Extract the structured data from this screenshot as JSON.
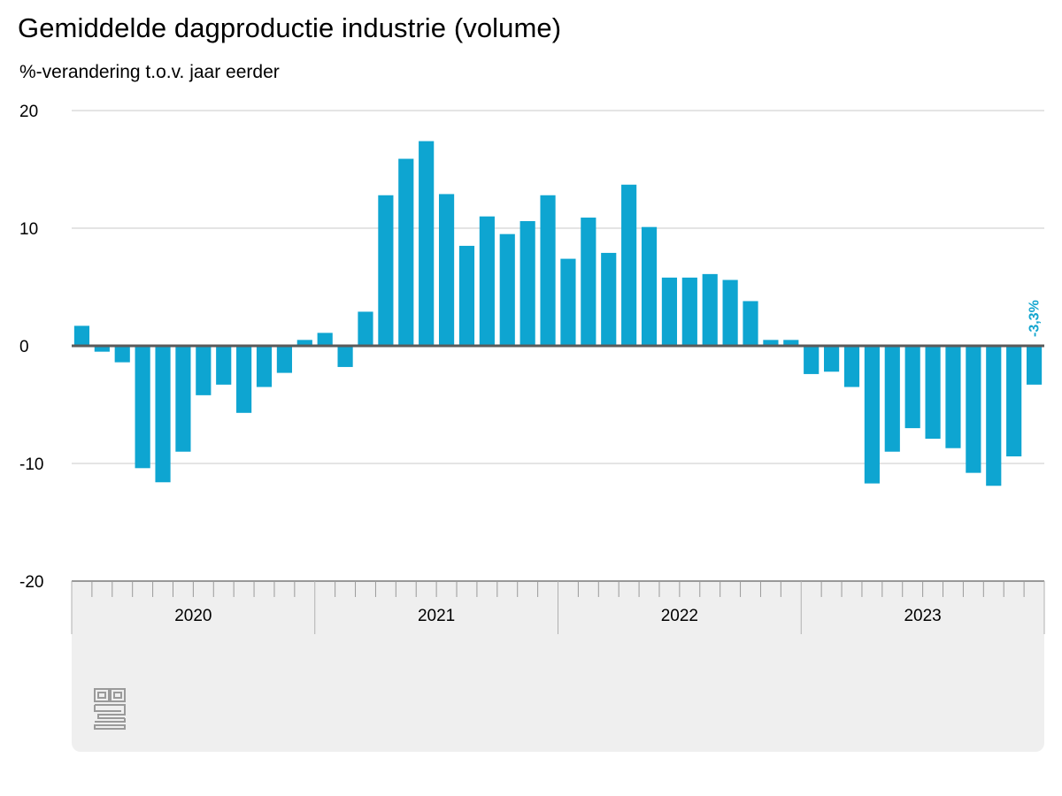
{
  "chart_data": {
    "type": "bar",
    "title": "Gemiddelde dagproductie industrie (volume)",
    "subtitle": "%-verandering t.o.v. jaar eerder",
    "ylim": [
      -20,
      20
    ],
    "yticks": [
      20,
      10,
      0,
      -10,
      -20
    ],
    "grid": true,
    "years": [
      "2020",
      "2021",
      "2022",
      "2023"
    ],
    "categories": [
      "2020-01",
      "2020-02",
      "2020-03",
      "2020-04",
      "2020-05",
      "2020-06",
      "2020-07",
      "2020-08",
      "2020-09",
      "2020-10",
      "2020-11",
      "2020-12",
      "2021-01",
      "2021-02",
      "2021-03",
      "2021-04",
      "2021-05",
      "2021-06",
      "2021-07",
      "2021-08",
      "2021-09",
      "2021-10",
      "2021-11",
      "2021-12",
      "2022-01",
      "2022-02",
      "2022-03",
      "2022-04",
      "2022-05",
      "2022-06",
      "2022-07",
      "2022-08",
      "2022-09",
      "2022-10",
      "2022-11",
      "2022-12",
      "2023-01",
      "2023-02",
      "2023-03",
      "2023-04",
      "2023-05",
      "2023-06",
      "2023-07",
      "2023-08",
      "2023-09",
      "2023-10",
      "2023-11",
      "2023-12"
    ],
    "values": [
      1.7,
      -0.5,
      -1.4,
      -10.4,
      -11.6,
      -9.0,
      -4.2,
      -3.3,
      -5.7,
      -3.5,
      -2.3,
      0.5,
      1.1,
      -1.8,
      2.9,
      12.8,
      15.9,
      17.4,
      12.9,
      8.5,
      11.0,
      9.5,
      10.6,
      12.8,
      7.4,
      10.9,
      7.9,
      13.7,
      10.1,
      5.8,
      5.8,
      6.1,
      5.6,
      3.8,
      0.5,
      0.5,
      -2.4,
      -2.2,
      -3.5,
      -11.7,
      -9.0,
      -7.0,
      -7.9,
      -8.7,
      -10.8,
      -11.9,
      -9.4,
      -3.3
    ],
    "last_label": "-3,3%",
    "bar_color": "#0ea5d1",
    "annotation_color": "#12a5cf"
  },
  "logo": {
    "name": "cbs-logo"
  }
}
